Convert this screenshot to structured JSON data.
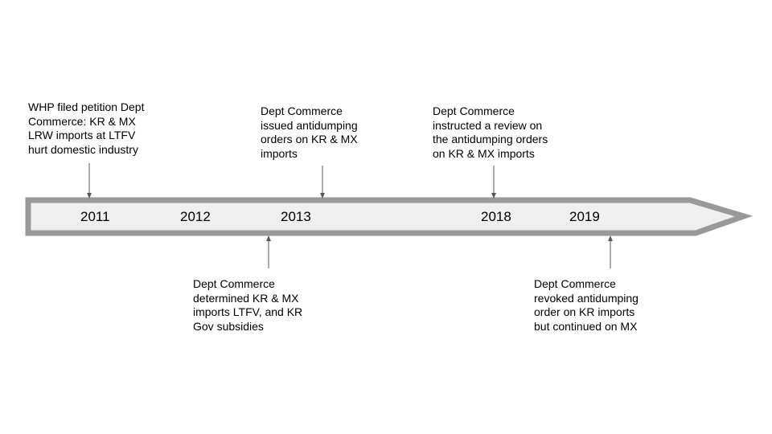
{
  "timeline": {
    "colors": {
      "arrow_fill": "#efefef",
      "arrow_stroke": "#999999",
      "connector": "#595959",
      "text": "#000000"
    },
    "years": [
      "2011",
      "2012",
      "2013",
      "2018",
      "2019"
    ],
    "events_above": [
      {
        "year": "2011",
        "lines": [
          "WHP filed petition Dept",
          "Commerce: KR & MX",
          "LRW imports at LTFV",
          "hurt domestic industry"
        ]
      },
      {
        "year": "2013",
        "lines": [
          "Dept Commerce",
          "issued antidumping",
          "orders on KR & MX",
          "imports"
        ]
      },
      {
        "year": "2018",
        "lines": [
          "Dept Commerce",
          "instructed a review on",
          "the antidumping orders",
          "on KR & MX imports"
        ]
      }
    ],
    "events_below": [
      {
        "year": "2012",
        "lines": [
          "Dept Commerce",
          "determined KR & MX",
          "imports LTFV, and KR",
          "Gov subsidies"
        ]
      },
      {
        "year": "2019",
        "lines": [
          "Dept Commerce",
          "revoked antidumping",
          "order on KR imports",
          "but continued on MX"
        ]
      }
    ]
  }
}
